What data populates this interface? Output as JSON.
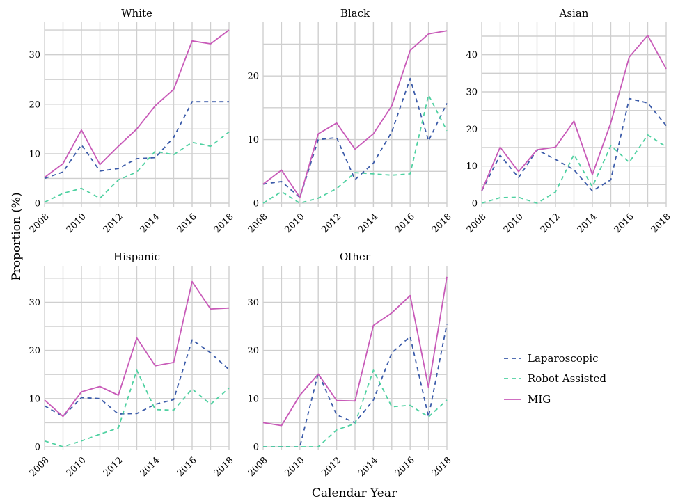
{
  "figure": {
    "xlabel": "Calendar Year",
    "ylabel": "Proportion (%)"
  },
  "legend": {
    "placement": "bottom-right",
    "items": [
      {
        "name": "Laparoscopic",
        "color": "#3b5ba9",
        "dash": "dashed"
      },
      {
        "name": "Robot Assisted",
        "color": "#4fd1a1",
        "dash": "dashed"
      },
      {
        "name": "MIG",
        "color": "#c85ab8",
        "dash": "solid"
      }
    ]
  },
  "chart_data": [
    {
      "type": "line",
      "title": "White",
      "x": [
        2008,
        2009,
        2010,
        2011,
        2012,
        2013,
        2014,
        2015,
        2016,
        2017,
        2018
      ],
      "xticks": [
        "2008",
        "2010",
        "2012",
        "2014",
        "2016",
        "2018"
      ],
      "ylim": [
        0,
        36
      ],
      "yticks": [
        0,
        10,
        20,
        30
      ],
      "series": [
        {
          "name": "Laparoscopic",
          "values": [
            5.0,
            6.3,
            11.8,
            6.5,
            7.0,
            9.0,
            9.2,
            13.3,
            20.5,
            20.5,
            20.5
          ]
        },
        {
          "name": "Robot Assisted",
          "values": [
            0.2,
            2.0,
            3.0,
            1.0,
            4.7,
            6.3,
            10.5,
            9.8,
            12.3,
            11.5,
            14.4
          ]
        },
        {
          "name": "MIG",
          "values": [
            5.2,
            8.0,
            14.8,
            7.8,
            11.5,
            15.0,
            19.7,
            23.0,
            32.8,
            32.2,
            35.0
          ]
        }
      ]
    },
    {
      "type": "line",
      "title": "Black",
      "x": [
        2008,
        2009,
        2010,
        2011,
        2012,
        2013,
        2014,
        2015,
        2016,
        2017,
        2018
      ],
      "xticks": [
        "2008",
        "2010",
        "2012",
        "2014",
        "2016",
        "2018"
      ],
      "ylim": [
        0,
        28
      ],
      "yticks": [
        0,
        10,
        20
      ],
      "series": [
        {
          "name": "Laparoscopic",
          "values": [
            3.0,
            3.4,
            0.9,
            10.0,
            10.3,
            3.7,
            6.3,
            11.2,
            19.6,
            9.8,
            15.7
          ]
        },
        {
          "name": "Robot Assisted",
          "values": [
            0.0,
            1.8,
            0.0,
            0.8,
            2.3,
            4.8,
            4.6,
            4.4,
            4.6,
            17.0,
            11.4
          ]
        },
        {
          "name": "MIG",
          "values": [
            3.0,
            5.2,
            0.9,
            10.9,
            12.6,
            8.5,
            10.9,
            15.3,
            24.0,
            26.6,
            27.1
          ]
        }
      ]
    },
    {
      "type": "line",
      "title": "Asian",
      "x": [
        2008,
        2009,
        2010,
        2011,
        2012,
        2013,
        2014,
        2015,
        2016,
        2017,
        2018
      ],
      "xticks": [
        "2008",
        "2010",
        "2012",
        "2014",
        "2016",
        "2018"
      ],
      "ylim": [
        0,
        48
      ],
      "yticks": [
        0,
        10,
        20,
        30,
        40
      ],
      "series": [
        {
          "name": "Laparoscopic",
          "values": [
            3.3,
            12.9,
            6.9,
            14.4,
            11.8,
            9.0,
            3.3,
            6.3,
            28.2,
            27.0,
            20.9
          ]
        },
        {
          "name": "Robot Assisted",
          "values": [
            0.0,
            1.5,
            1.6,
            0.0,
            3.0,
            13.1,
            4.4,
            15.5,
            11.0,
            18.4,
            15.2
          ]
        },
        {
          "name": "MIG",
          "values": [
            3.3,
            15.1,
            8.5,
            14.4,
            15.1,
            22.1,
            7.7,
            21.7,
            39.4,
            45.2,
            36.2
          ]
        }
      ]
    },
    {
      "type": "line",
      "title": "Hispanic",
      "x": [
        2008,
        2009,
        2010,
        2011,
        2012,
        2013,
        2014,
        2015,
        2016,
        2017,
        2018
      ],
      "xticks": [
        "2008",
        "2010",
        "2012",
        "2014",
        "2016",
        "2018"
      ],
      "ylim": [
        0,
        37
      ],
      "yticks": [
        0,
        10,
        20,
        30
      ],
      "series": [
        {
          "name": "Laparoscopic",
          "values": [
            8.5,
            6.3,
            10.2,
            10.0,
            6.8,
            6.9,
            8.8,
            9.8,
            22.2,
            19.5,
            16.0
          ]
        },
        {
          "name": "Robot Assisted",
          "values": [
            1.2,
            0.0,
            1.2,
            2.6,
            3.9,
            15.9,
            7.7,
            7.6,
            12.0,
            8.8,
            12.2
          ]
        },
        {
          "name": "MIG",
          "values": [
            9.7,
            6.3,
            11.4,
            12.5,
            10.7,
            22.6,
            16.8,
            17.5,
            34.3,
            28.6,
            28.8
          ]
        }
      ]
    },
    {
      "type": "line",
      "title": "Other",
      "x": [
        2008,
        2009,
        2010,
        2011,
        2012,
        2013,
        2014,
        2015,
        2016,
        2017,
        2018
      ],
      "xticks": [
        "2008",
        "2010",
        "2012",
        "2014",
        "2016",
        "2018"
      ],
      "ylim": [
        0,
        37
      ],
      "yticks": [
        0,
        10,
        20,
        30
      ],
      "series": [
        {
          "name": "Laparoscopic",
          "values": [
            0.0,
            0.0,
            0.0,
            15.3,
            6.6,
            5.0,
            9.7,
            19.5,
            22.9,
            6.2,
            25.5
          ]
        },
        {
          "name": "Robot Assisted",
          "values": [
            0.0,
            0.0,
            0.0,
            0.0,
            3.5,
            4.8,
            15.9,
            8.3,
            8.6,
            6.2,
            9.7
          ]
        },
        {
          "name": "MIG",
          "values": [
            5.0,
            4.4,
            10.7,
            15.1,
            9.6,
            9.5,
            25.2,
            27.8,
            31.4,
            12.3,
            35.3
          ]
        }
      ]
    }
  ]
}
